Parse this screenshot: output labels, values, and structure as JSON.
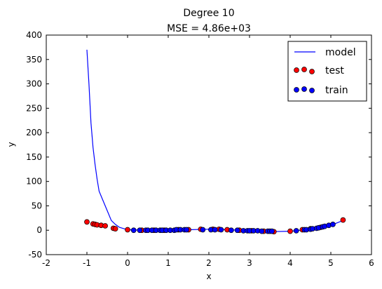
{
  "chart_data": {
    "type": "scatter",
    "title": "Degree 10",
    "subtitle": "MSE = 4.86e+03",
    "xlabel": "x",
    "ylabel": "y",
    "xlim": [
      -2,
      6
    ],
    "ylim": [
      -50,
      400
    ],
    "xticks": [
      "-2",
      "-1",
      "0",
      "1",
      "2",
      "3",
      "4",
      "5",
      "6"
    ],
    "yticks": [
      "-50",
      "0",
      "50",
      "100",
      "150",
      "200",
      "250",
      "300",
      "350",
      "400"
    ],
    "grid": false,
    "legend_position": "top-right",
    "series": [
      {
        "name": "model",
        "kind": "line",
        "color": "#0000ff",
        "x": [
          -1.0,
          -0.95,
          -0.9,
          -0.85,
          -0.8,
          -0.75,
          -0.7,
          -0.6,
          -0.5,
          -0.4,
          -0.3,
          -0.2,
          0.0,
          0.5,
          1.0,
          1.5,
          2.0,
          2.5,
          3.0,
          3.5,
          4.0,
          4.5,
          5.0,
          5.3
        ],
        "y": [
          370,
          300,
          220,
          170,
          135,
          105,
          80,
          60,
          40,
          20,
          12,
          6,
          1,
          0,
          0,
          1,
          2,
          1,
          -1,
          -3,
          -2,
          2,
          10,
          20
        ]
      },
      {
        "name": "test",
        "kind": "scatter",
        "color": "#ff0000",
        "x": [
          -1.0,
          -0.85,
          -0.8,
          -0.75,
          -0.65,
          -0.55,
          -0.35,
          -0.3,
          0.0,
          0.35,
          0.65,
          0.9,
          1.25,
          1.5,
          1.8,
          2.1,
          2.25,
          2.45,
          2.75,
          3.05,
          3.35,
          3.6,
          4.0,
          4.3,
          4.5,
          4.75,
          5.3
        ],
        "y": [
          17,
          13,
          12,
          11,
          10,
          9,
          4,
          3,
          1,
          0,
          0,
          0,
          1,
          1,
          2,
          2,
          2,
          1,
          0,
          -1,
          -2,
          -3,
          -2,
          1,
          3,
          6,
          21
        ]
      },
      {
        "name": "train",
        "kind": "scatter",
        "color": "#0000ff",
        "x": [
          0.15,
          0.3,
          0.45,
          0.5,
          0.6,
          0.7,
          0.8,
          0.85,
          0.95,
          1.05,
          1.15,
          1.2,
          1.3,
          1.4,
          1.45,
          1.85,
          2.05,
          2.15,
          2.3,
          2.55,
          2.7,
          2.85,
          2.95,
          3.0,
          3.1,
          3.2,
          3.3,
          3.45,
          3.5,
          3.55,
          4.15,
          4.35,
          4.4,
          4.5,
          4.55,
          4.65,
          4.7,
          4.8,
          4.85,
          4.95,
          5.05
        ],
        "y": [
          0,
          0,
          0,
          0,
          0,
          0,
          0,
          0,
          0,
          0,
          0,
          1,
          1,
          1,
          1,
          1,
          1,
          1,
          1,
          0,
          0,
          -1,
          -1,
          -1,
          -1,
          -1,
          -2,
          -2,
          -2,
          -2,
          -1,
          1,
          1,
          2,
          3,
          4,
          5,
          7,
          8,
          10,
          12
        ]
      }
    ]
  }
}
